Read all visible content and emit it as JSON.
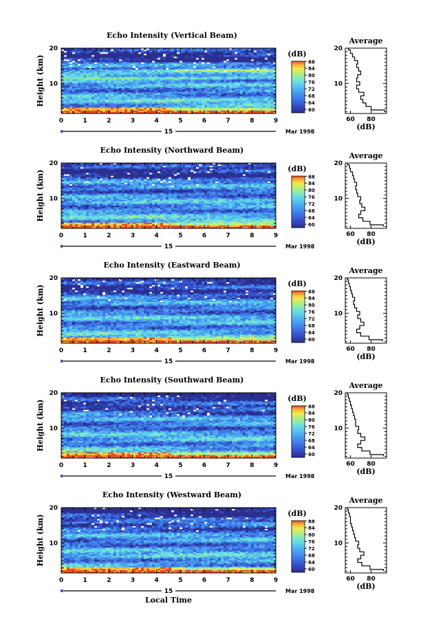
{
  "chart_data": [
    {
      "type": "heatmap",
      "title": "Echo Intensity (Vertical Beam)",
      "ylabel": "Height (km)",
      "xticks": [
        "0",
        "1",
        "2",
        "3",
        "4",
        "5",
        "6",
        "7",
        "8",
        "9"
      ],
      "yticks": [
        "10",
        "20"
      ],
      "day_label": "15",
      "date_label": "Mar 1998",
      "colorbar": {
        "unit": "(dB)",
        "ticks": [
          "60",
          "64",
          "68",
          "72",
          "76",
          "80",
          "84",
          "88"
        ],
        "range": [
          60,
          88
        ]
      },
      "profile": {
        "title": "Average",
        "xlabel": "(dB)",
        "xticks": [
          "60",
          "80"
        ],
        "xrange": [
          55,
          95
        ],
        "yticks": [
          "10",
          "20"
        ],
        "heights": [
          2,
          3,
          4,
          5,
          6,
          7,
          8,
          9,
          10,
          11,
          12,
          13,
          14,
          15,
          16,
          17,
          18,
          19,
          20
        ],
        "values": [
          93,
          80,
          75,
          72,
          70,
          73,
          68,
          66,
          69,
          66,
          67,
          70,
          68,
          66,
          67,
          64,
          62,
          60,
          58
        ]
      }
    },
    {
      "type": "heatmap",
      "title": "Echo Intensity (Northward Beam)",
      "ylabel": "Height (km)",
      "xticks": [
        "0",
        "1",
        "2",
        "3",
        "4",
        "5",
        "6",
        "7",
        "8",
        "9"
      ],
      "yticks": [
        "10",
        "20"
      ],
      "day_label": "15",
      "date_label": "Mar 1998",
      "colorbar": {
        "unit": "(dB)",
        "ticks": [
          "60",
          "64",
          "68",
          "72",
          "76",
          "80",
          "84",
          "88"
        ],
        "range": [
          60,
          88
        ]
      },
      "profile": {
        "title": "Average",
        "xlabel": "(dB)",
        "xticks": [
          "60",
          "80"
        ],
        "xrange": [
          55,
          95
        ],
        "yticks": [
          "10",
          "20"
        ],
        "heights": [
          2,
          3,
          4,
          5,
          6,
          7,
          8,
          9,
          10,
          11,
          12,
          13,
          14,
          15,
          16,
          17,
          18,
          19,
          20
        ],
        "values": [
          92,
          79,
          72,
          68,
          70,
          74,
          71,
          69,
          70,
          67,
          66,
          65,
          66,
          64,
          63,
          62,
          60,
          59,
          57
        ]
      }
    },
    {
      "type": "heatmap",
      "title": "Echo Intensity (Eastward Beam)",
      "ylabel": "Height (km)",
      "xticks": [
        "0",
        "1",
        "2",
        "3",
        "4",
        "5",
        "6",
        "7",
        "8",
        "9"
      ],
      "yticks": [
        "10",
        "20"
      ],
      "day_label": "15",
      "date_label": "Mar 1998",
      "colorbar": {
        "unit": "(dB)",
        "ticks": [
          "60",
          "64",
          "68",
          "72",
          "76",
          "80",
          "84",
          "88"
        ],
        "range": [
          60,
          88
        ]
      },
      "profile": {
        "title": "Average",
        "xlabel": "(dB)",
        "xticks": [
          "60",
          "80"
        ],
        "xrange": [
          55,
          95
        ],
        "yticks": [
          "10",
          "20"
        ],
        "heights": [
          2,
          3,
          4,
          5,
          6,
          7,
          8,
          9,
          10,
          11,
          12,
          13,
          14,
          15,
          16,
          17,
          18,
          19,
          20
        ],
        "values": [
          91,
          78,
          70,
          66,
          69,
          73,
          70,
          67,
          69,
          66,
          64,
          63,
          64,
          62,
          61,
          60,
          59,
          58,
          57
        ]
      }
    },
    {
      "type": "heatmap",
      "title": "Echo Intensity (Southward Beam)",
      "ylabel": "Height (km)",
      "xticks": [
        "0",
        "1",
        "2",
        "3",
        "4",
        "5",
        "6",
        "7",
        "8",
        "9"
      ],
      "yticks": [
        "10",
        "20"
      ],
      "day_label": "15",
      "date_label": "Mar 1998",
      "colorbar": {
        "unit": "(dB)",
        "ticks": [
          "60",
          "64",
          "68",
          "72",
          "76",
          "80",
          "84",
          "88"
        ],
        "range": [
          60,
          88
        ]
      },
      "profile": {
        "title": "Average",
        "xlabel": "(dB)",
        "xticks": [
          "60",
          "80"
        ],
        "xrange": [
          55,
          95
        ],
        "yticks": [
          "10",
          "20"
        ],
        "heights": [
          2,
          3,
          4,
          5,
          6,
          7,
          8,
          9,
          10,
          11,
          12,
          13,
          14,
          15,
          16,
          17,
          18,
          19,
          20
        ],
        "values": [
          92,
          79,
          71,
          67,
          70,
          74,
          70,
          67,
          68,
          65,
          65,
          64,
          63,
          62,
          61,
          60,
          59,
          58,
          57
        ]
      }
    },
    {
      "type": "heatmap",
      "title": "Echo Intensity (Westward Beam)",
      "ylabel": "Height (km)",
      "xticks": [
        "0",
        "1",
        "2",
        "3",
        "4",
        "5",
        "6",
        "7",
        "8",
        "9"
      ],
      "yticks": [
        "10",
        "20"
      ],
      "day_label": "15",
      "date_label": "Mar 1998",
      "xlabel": "Local Time",
      "colorbar": {
        "unit": "(dB)",
        "ticks": [
          "60",
          "64",
          "68",
          "72",
          "76",
          "80",
          "84",
          "88"
        ],
        "range": [
          60,
          88
        ]
      },
      "profile": {
        "title": "Average",
        "xlabel": "(dB)",
        "xticks": [
          "60",
          "80"
        ],
        "xrange": [
          55,
          95
        ],
        "yticks": [
          "10",
          "20"
        ],
        "heights": [
          2,
          3,
          4,
          5,
          6,
          7,
          8,
          9,
          10,
          11,
          12,
          13,
          14,
          15,
          16,
          17,
          18,
          19,
          20
        ],
        "values": [
          92,
          79,
          71,
          67,
          70,
          73,
          69,
          67,
          68,
          65,
          64,
          63,
          62,
          61,
          60,
          60,
          59,
          58,
          57
        ]
      }
    }
  ],
  "colors": {
    "scale": [
      "#2b2f8f",
      "#3550c8",
      "#3f7ce8",
      "#4aa6f0",
      "#5fd0ec",
      "#7ee8c8",
      "#b4ee7a",
      "#eeea55",
      "#f7b23a",
      "#e84a25"
    ],
    "frame": "#000000",
    "gap": "#ffffff"
  }
}
